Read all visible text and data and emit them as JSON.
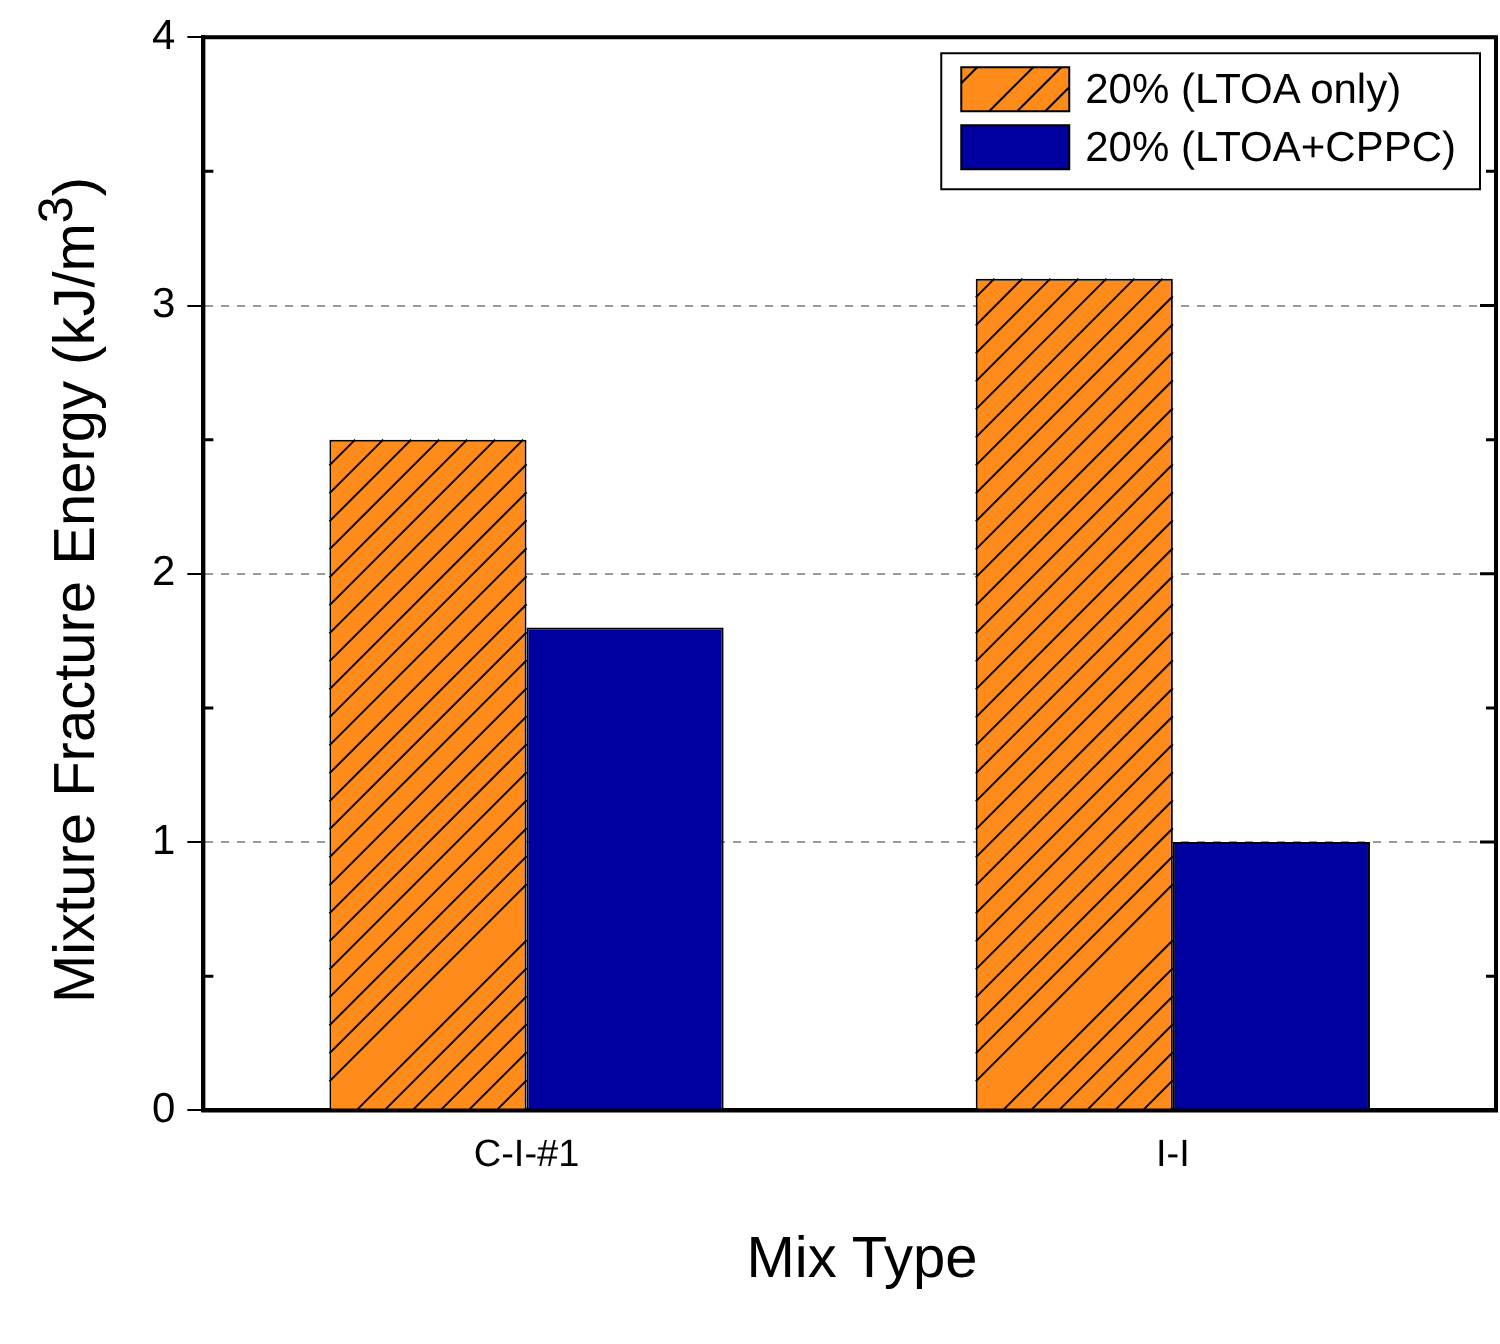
{
  "chart_data": {
    "type": "bar",
    "xlabel": "Mix Type",
    "ylabel": "Mixture Fracture Energy (kJ/m$^{3}$)",
    "categories": [
      "C-I-#1",
      "I-I"
    ],
    "series": [
      {
        "name": "20% (LTOA only)",
        "color": "#ff8c1a",
        "values": [
          2.5,
          3.1
        ]
      },
      {
        "name": "20% (LTOA+CPPC)",
        "color": "#0000a0",
        "values": [
          1.8,
          1.0
        ]
      }
    ],
    "ylim": [
      0,
      4
    ],
    "yticks": [
      0,
      1,
      2,
      3,
      4
    ],
    "grid": "y",
    "legend": "top right"
  }
}
